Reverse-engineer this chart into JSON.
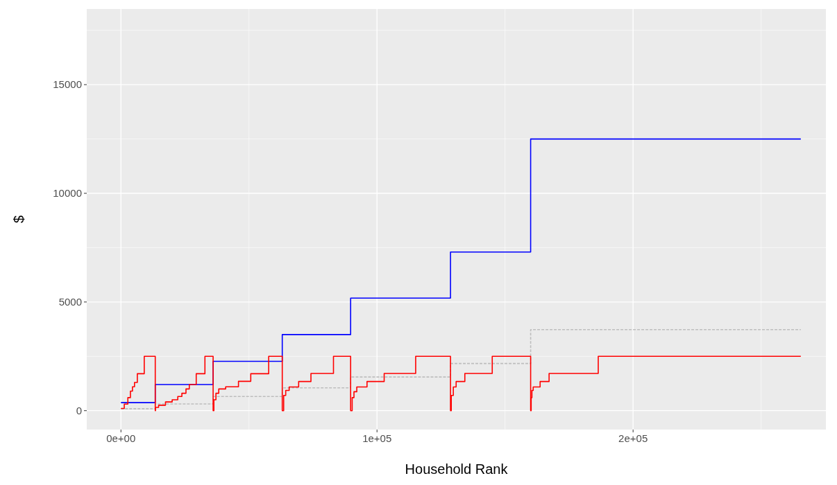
{
  "chart_data": {
    "type": "step",
    "xlabel": "Household Rank",
    "ylabel": "$",
    "xlim": [
      -13350,
      275300
    ],
    "ylim": [
      -870,
      18480
    ],
    "xticks": [
      {
        "value": 0,
        "label": "0e+00"
      },
      {
        "value": 100000,
        "label": "1e+05"
      },
      {
        "value": 200000,
        "label": "2e+05"
      }
    ],
    "yticks": [
      0,
      5000,
      10000,
      15000
    ],
    "grid": true,
    "series": [
      {
        "color": "#0000ff",
        "x": [
          0,
          13400,
          36000,
          63000,
          89700,
          128700,
          160000,
          265500
        ],
        "values": [
          370,
          1200,
          2270,
          3500,
          5180,
          7300,
          12500,
          12500
        ]
      },
      {
        "color": "#bebebe",
        "line_style": "dashed",
        "x": [
          0,
          13400,
          36000,
          63000,
          89700,
          128700,
          160000,
          265500
        ],
        "values": [
          90,
          310,
          650,
          1050,
          1550,
          2170,
          3730,
          3730
        ]
      },
      {
        "color": "#ff0000",
        "x": [
          0,
          1300,
          2700,
          3700,
          4500,
          5300,
          6400,
          9100,
          13400,
          13500,
          14700,
          17400,
          20000,
          22200,
          23800,
          25400,
          26700,
          29400,
          32800,
          36000,
          36300,
          37100,
          38200,
          40900,
          45900,
          50700,
          57700,
          63000,
          63550,
          64350,
          65700,
          69400,
          74200,
          83000,
          89700,
          90300,
          91000,
          92100,
          96100,
          102800,
          115100,
          128700,
          129000,
          129800,
          130900,
          134300,
          145000,
          160000,
          160200,
          160500,
          161000,
          163700,
          167200,
          186400,
          265500
        ],
        "values": [
          100,
          300,
          600,
          900,
          1100,
          1300,
          1700,
          2500,
          0,
          150,
          250,
          400,
          500,
          650,
          800,
          1000,
          1200,
          1700,
          2500,
          0,
          500,
          800,
          1000,
          1100,
          1350,
          1700,
          2500,
          0,
          700,
          930,
          1090,
          1340,
          1710,
          2500,
          0,
          600,
          870,
          1090,
          1340,
          1710,
          2500,
          0,
          700,
          1090,
          1340,
          1710,
          2500,
          0,
          600,
          930,
          1090,
          1340,
          1710,
          2500,
          2500
        ]
      }
    ]
  }
}
